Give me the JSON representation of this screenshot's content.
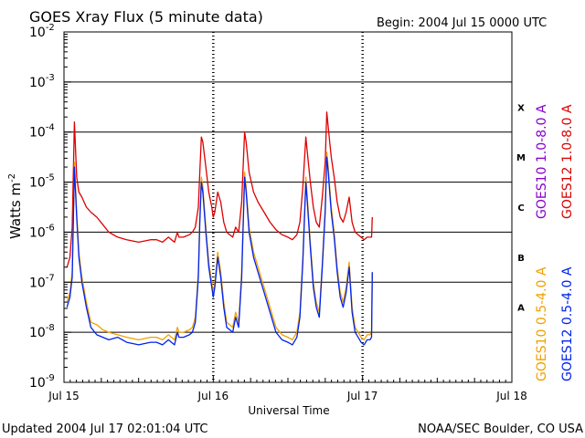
{
  "chart_data": {
    "type": "line",
    "title": "GOES Xray Flux (5 minute data)",
    "begin_label": "Begin:  2004 Jul 15 0000 UTC",
    "ylabel_main": "Watts m",
    "ylabel_sup": "-2",
    "xlabel": "Universal Time",
    "y_scale": "log",
    "ylim": [
      1e-09,
      0.01
    ],
    "xlim_days": [
      0,
      3
    ],
    "x_ticks": [
      {
        "day": 0,
        "label": "Jul 15"
      },
      {
        "day": 1,
        "label": "Jul 16"
      },
      {
        "day": 2,
        "label": "Jul 17"
      },
      {
        "day": 3,
        "label": "Jul 18"
      }
    ],
    "y_ticks": [
      {
        "exp": -2,
        "label": "10",
        "sup": "-2"
      },
      {
        "exp": -3,
        "label": "10",
        "sup": "-3"
      },
      {
        "exp": -4,
        "label": "10",
        "sup": "-4"
      },
      {
        "exp": -5,
        "label": "10",
        "sup": "-5"
      },
      {
        "exp": -6,
        "label": "10",
        "sup": "-6"
      },
      {
        "exp": -7,
        "label": "10",
        "sup": "-7"
      },
      {
        "exp": -8,
        "label": "10",
        "sup": "-8"
      },
      {
        "exp": -9,
        "label": "10",
        "sup": "-9"
      }
    ],
    "flare_classes": [
      {
        "label": "X",
        "exp": -3.5
      },
      {
        "label": "M",
        "exp": -4.5
      },
      {
        "label": "C",
        "exp": -5.5
      },
      {
        "label": "B",
        "exp": -6.5
      },
      {
        "label": "A",
        "exp": -7.5
      }
    ],
    "grid_exps": [
      -3,
      -4,
      -5,
      -6,
      -7,
      -8
    ],
    "series": [
      {
        "name": "GOES12 1.0-8.0 A",
        "color": "#dd0000",
        "points": [
          [
            0.02,
            -6.7
          ],
          [
            0.04,
            -6.5
          ],
          [
            0.055,
            -5.9
          ],
          [
            0.07,
            -3.8
          ],
          [
            0.085,
            -4.9
          ],
          [
            0.1,
            -5.2
          ],
          [
            0.12,
            -5.3
          ],
          [
            0.15,
            -5.5
          ],
          [
            0.18,
            -5.6
          ],
          [
            0.22,
            -5.7
          ],
          [
            0.26,
            -5.85
          ],
          [
            0.3,
            -6.0
          ],
          [
            0.36,
            -6.1
          ],
          [
            0.42,
            -6.15
          ],
          [
            0.5,
            -6.2
          ],
          [
            0.58,
            -6.15
          ],
          [
            0.62,
            -6.15
          ],
          [
            0.66,
            -6.2
          ],
          [
            0.7,
            -6.1
          ],
          [
            0.72,
            -6.15
          ],
          [
            0.74,
            -6.2
          ],
          [
            0.76,
            -6.0
          ],
          [
            0.77,
            -6.1
          ],
          [
            0.8,
            -6.1
          ],
          [
            0.84,
            -6.05
          ],
          [
            0.86,
            -6.0
          ],
          [
            0.88,
            -5.9
          ],
          [
            0.9,
            -5.5
          ],
          [
            0.91,
            -4.8
          ],
          [
            0.92,
            -4.1
          ],
          [
            0.93,
            -4.2
          ],
          [
            0.95,
            -4.7
          ],
          [
            0.97,
            -5.2
          ],
          [
            0.99,
            -5.5
          ],
          [
            1.0,
            -5.7
          ],
          [
            1.01,
            -5.6
          ],
          [
            1.03,
            -5.2
          ],
          [
            1.05,
            -5.4
          ],
          [
            1.07,
            -5.8
          ],
          [
            1.09,
            -6.0
          ],
          [
            1.11,
            -6.05
          ],
          [
            1.13,
            -6.1
          ],
          [
            1.15,
            -5.9
          ],
          [
            1.17,
            -6.0
          ],
          [
            1.19,
            -5.4
          ],
          [
            1.21,
            -4.0
          ],
          [
            1.22,
            -4.2
          ],
          [
            1.24,
            -4.8
          ],
          [
            1.27,
            -5.2
          ],
          [
            1.3,
            -5.4
          ],
          [
            1.34,
            -5.6
          ],
          [
            1.38,
            -5.8
          ],
          [
            1.42,
            -5.95
          ],
          [
            1.46,
            -6.05
          ],
          [
            1.5,
            -6.1
          ],
          [
            1.53,
            -6.15
          ],
          [
            1.56,
            -6.05
          ],
          [
            1.58,
            -5.8
          ],
          [
            1.6,
            -5.1
          ],
          [
            1.62,
            -4.1
          ],
          [
            1.63,
            -4.4
          ],
          [
            1.65,
            -5.0
          ],
          [
            1.67,
            -5.5
          ],
          [
            1.69,
            -5.8
          ],
          [
            1.71,
            -5.9
          ],
          [
            1.73,
            -5.3
          ],
          [
            1.75,
            -4.6
          ],
          [
            1.76,
            -3.6
          ],
          [
            1.77,
            -3.9
          ],
          [
            1.78,
            -4.2
          ],
          [
            1.79,
            -4.5
          ],
          [
            1.81,
            -4.9
          ],
          [
            1.83,
            -5.4
          ],
          [
            1.85,
            -5.7
          ],
          [
            1.87,
            -5.8
          ],
          [
            1.89,
            -5.6
          ],
          [
            1.91,
            -5.3
          ],
          [
            1.93,
            -5.8
          ],
          [
            1.95,
            -6.0
          ],
          [
            1.97,
            -6.05
          ],
          [
            1.99,
            -6.1
          ],
          [
            2.01,
            -6.15
          ],
          [
            2.03,
            -6.1
          ],
          [
            2.05,
            -6.1
          ],
          [
            2.06,
            -6.1
          ],
          [
            2.065,
            -5.7
          ]
        ]
      },
      {
        "name": "GOES10 1.0-8.0 A",
        "color": "#8800cc",
        "points": []
      },
      {
        "name": "GOES10 0.5-4.0 A",
        "color": "#f0a000",
        "points": [
          [
            0.02,
            -7.4
          ],
          [
            0.04,
            -7.2
          ],
          [
            0.055,
            -6.8
          ],
          [
            0.07,
            -4.6
          ],
          [
            0.085,
            -5.6
          ],
          [
            0.1,
            -6.4
          ],
          [
            0.12,
            -6.9
          ],
          [
            0.15,
            -7.4
          ],
          [
            0.18,
            -7.8
          ],
          [
            0.22,
            -7.85
          ],
          [
            0.26,
            -7.95
          ],
          [
            0.3,
            -8.0
          ],
          [
            0.36,
            -8.05
          ],
          [
            0.42,
            -8.1
          ],
          [
            0.5,
            -8.15
          ],
          [
            0.58,
            -8.1
          ],
          [
            0.62,
            -8.1
          ],
          [
            0.66,
            -8.15
          ],
          [
            0.7,
            -8.05
          ],
          [
            0.72,
            -8.1
          ],
          [
            0.74,
            -8.15
          ],
          [
            0.76,
            -7.9
          ],
          [
            0.77,
            -8.0
          ],
          [
            0.8,
            -8.0
          ],
          [
            0.84,
            -7.95
          ],
          [
            0.86,
            -7.9
          ],
          [
            0.88,
            -7.7
          ],
          [
            0.9,
            -6.8
          ],
          [
            0.91,
            -5.7
          ],
          [
            0.92,
            -4.9
          ],
          [
            0.93,
            -5.1
          ],
          [
            0.95,
            -5.9
          ],
          [
            0.97,
            -6.6
          ],
          [
            0.99,
            -7.0
          ],
          [
            1.0,
            -7.2
          ],
          [
            1.01,
            -7.0
          ],
          [
            1.03,
            -6.4
          ],
          [
            1.05,
            -6.8
          ],
          [
            1.07,
            -7.4
          ],
          [
            1.09,
            -7.8
          ],
          [
            1.11,
            -7.85
          ],
          [
            1.13,
            -7.9
          ],
          [
            1.15,
            -7.6
          ],
          [
            1.17,
            -7.8
          ],
          [
            1.19,
            -6.8
          ],
          [
            1.21,
            -4.8
          ],
          [
            1.22,
            -5.1
          ],
          [
            1.24,
            -5.9
          ],
          [
            1.27,
            -6.4
          ],
          [
            1.3,
            -6.7
          ],
          [
            1.34,
            -7.1
          ],
          [
            1.38,
            -7.5
          ],
          [
            1.42,
            -7.9
          ],
          [
            1.46,
            -8.05
          ],
          [
            1.5,
            -8.1
          ],
          [
            1.53,
            -8.15
          ],
          [
            1.56,
            -8.0
          ],
          [
            1.58,
            -7.6
          ],
          [
            1.6,
            -6.5
          ],
          [
            1.62,
            -4.9
          ],
          [
            1.63,
            -5.3
          ],
          [
            1.65,
            -6.2
          ],
          [
            1.67,
            -7.0
          ],
          [
            1.69,
            -7.4
          ],
          [
            1.71,
            -7.6
          ],
          [
            1.73,
            -6.6
          ],
          [
            1.75,
            -5.5
          ],
          [
            1.76,
            -4.4
          ],
          [
            1.77,
            -4.7
          ],
          [
            1.78,
            -5.1
          ],
          [
            1.79,
            -5.5
          ],
          [
            1.81,
            -6.0
          ],
          [
            1.83,
            -6.7
          ],
          [
            1.85,
            -7.2
          ],
          [
            1.87,
            -7.4
          ],
          [
            1.89,
            -7.1
          ],
          [
            1.91,
            -6.6
          ],
          [
            1.93,
            -7.5
          ],
          [
            1.95,
            -7.9
          ],
          [
            1.97,
            -8.0
          ],
          [
            1.99,
            -8.1
          ],
          [
            2.01,
            -8.15
          ],
          [
            2.03,
            -8.05
          ],
          [
            2.05,
            -8.05
          ],
          [
            2.06,
            -8.0
          ],
          [
            2.065,
            -6.8
          ]
        ]
      },
      {
        "name": "GOES12 0.5-4.0 A",
        "color": "#0022ee",
        "points": [
          [
            0.02,
            -7.5
          ],
          [
            0.04,
            -7.3
          ],
          [
            0.055,
            -6.9
          ],
          [
            0.07,
            -4.7
          ],
          [
            0.085,
            -5.7
          ],
          [
            0.1,
            -6.5
          ],
          [
            0.12,
            -7.0
          ],
          [
            0.15,
            -7.5
          ],
          [
            0.18,
            -7.9
          ],
          [
            0.22,
            -8.05
          ],
          [
            0.26,
            -8.1
          ],
          [
            0.3,
            -8.15
          ],
          [
            0.36,
            -8.1
          ],
          [
            0.42,
            -8.2
          ],
          [
            0.5,
            -8.25
          ],
          [
            0.58,
            -8.2
          ],
          [
            0.62,
            -8.2
          ],
          [
            0.66,
            -8.25
          ],
          [
            0.7,
            -8.15
          ],
          [
            0.72,
            -8.2
          ],
          [
            0.74,
            -8.25
          ],
          [
            0.76,
            -8.0
          ],
          [
            0.77,
            -8.1
          ],
          [
            0.8,
            -8.1
          ],
          [
            0.84,
            -8.05
          ],
          [
            0.86,
            -8.0
          ],
          [
            0.88,
            -7.8
          ],
          [
            0.9,
            -6.9
          ],
          [
            0.91,
            -5.8
          ],
          [
            0.92,
            -5.0
          ],
          [
            0.93,
            -5.2
          ],
          [
            0.95,
            -6.0
          ],
          [
            0.97,
            -6.7
          ],
          [
            0.99,
            -7.1
          ],
          [
            1.0,
            -7.3
          ],
          [
            1.01,
            -7.1
          ],
          [
            1.03,
            -6.5
          ],
          [
            1.05,
            -6.9
          ],
          [
            1.07,
            -7.5
          ],
          [
            1.09,
            -7.9
          ],
          [
            1.11,
            -7.95
          ],
          [
            1.13,
            -8.0
          ],
          [
            1.15,
            -7.7
          ],
          [
            1.17,
            -7.9
          ],
          [
            1.19,
            -6.9
          ],
          [
            1.21,
            -4.9
          ],
          [
            1.22,
            -5.2
          ],
          [
            1.24,
            -6.0
          ],
          [
            1.27,
            -6.5
          ],
          [
            1.3,
            -6.8
          ],
          [
            1.34,
            -7.2
          ],
          [
            1.38,
            -7.6
          ],
          [
            1.42,
            -8.0
          ],
          [
            1.46,
            -8.15
          ],
          [
            1.5,
            -8.2
          ],
          [
            1.53,
            -8.25
          ],
          [
            1.56,
            -8.1
          ],
          [
            1.58,
            -7.7
          ],
          [
            1.6,
            -6.6
          ],
          [
            1.62,
            -5.0
          ],
          [
            1.63,
            -5.4
          ],
          [
            1.65,
            -6.3
          ],
          [
            1.67,
            -7.1
          ],
          [
            1.69,
            -7.5
          ],
          [
            1.71,
            -7.7
          ],
          [
            1.73,
            -6.7
          ],
          [
            1.75,
            -5.6
          ],
          [
            1.76,
            -4.5
          ],
          [
            1.77,
            -4.8
          ],
          [
            1.78,
            -5.2
          ],
          [
            1.79,
            -5.6
          ],
          [
            1.81,
            -6.1
          ],
          [
            1.83,
            -6.8
          ],
          [
            1.85,
            -7.3
          ],
          [
            1.87,
            -7.5
          ],
          [
            1.89,
            -7.2
          ],
          [
            1.91,
            -6.7
          ],
          [
            1.93,
            -7.6
          ],
          [
            1.95,
            -8.0
          ],
          [
            1.97,
            -8.1
          ],
          [
            1.99,
            -8.2
          ],
          [
            2.01,
            -8.25
          ],
          [
            2.03,
            -8.15
          ],
          [
            2.05,
            -8.15
          ],
          [
            2.06,
            -8.1
          ],
          [
            2.065,
            -6.8
          ]
        ]
      }
    ],
    "right_legend": [
      {
        "text": "GOES10 1.0-8.0 A",
        "color": "#8800cc",
        "slot": 0
      },
      {
        "text": "GOES12 1.0-8.0 A",
        "color": "#dd0000",
        "slot": 1
      },
      {
        "text": "GOES10 0.5-4.0 A",
        "color": "#f0a000",
        "slot": 2
      },
      {
        "text": "GOES12 0.5-4.0 A",
        "color": "#0022ee",
        "slot": 3
      }
    ]
  },
  "footer": {
    "updated": "Updated 2004 Jul 17 02:01:04 UTC",
    "source": "NOAA/SEC Boulder, CO USA"
  }
}
